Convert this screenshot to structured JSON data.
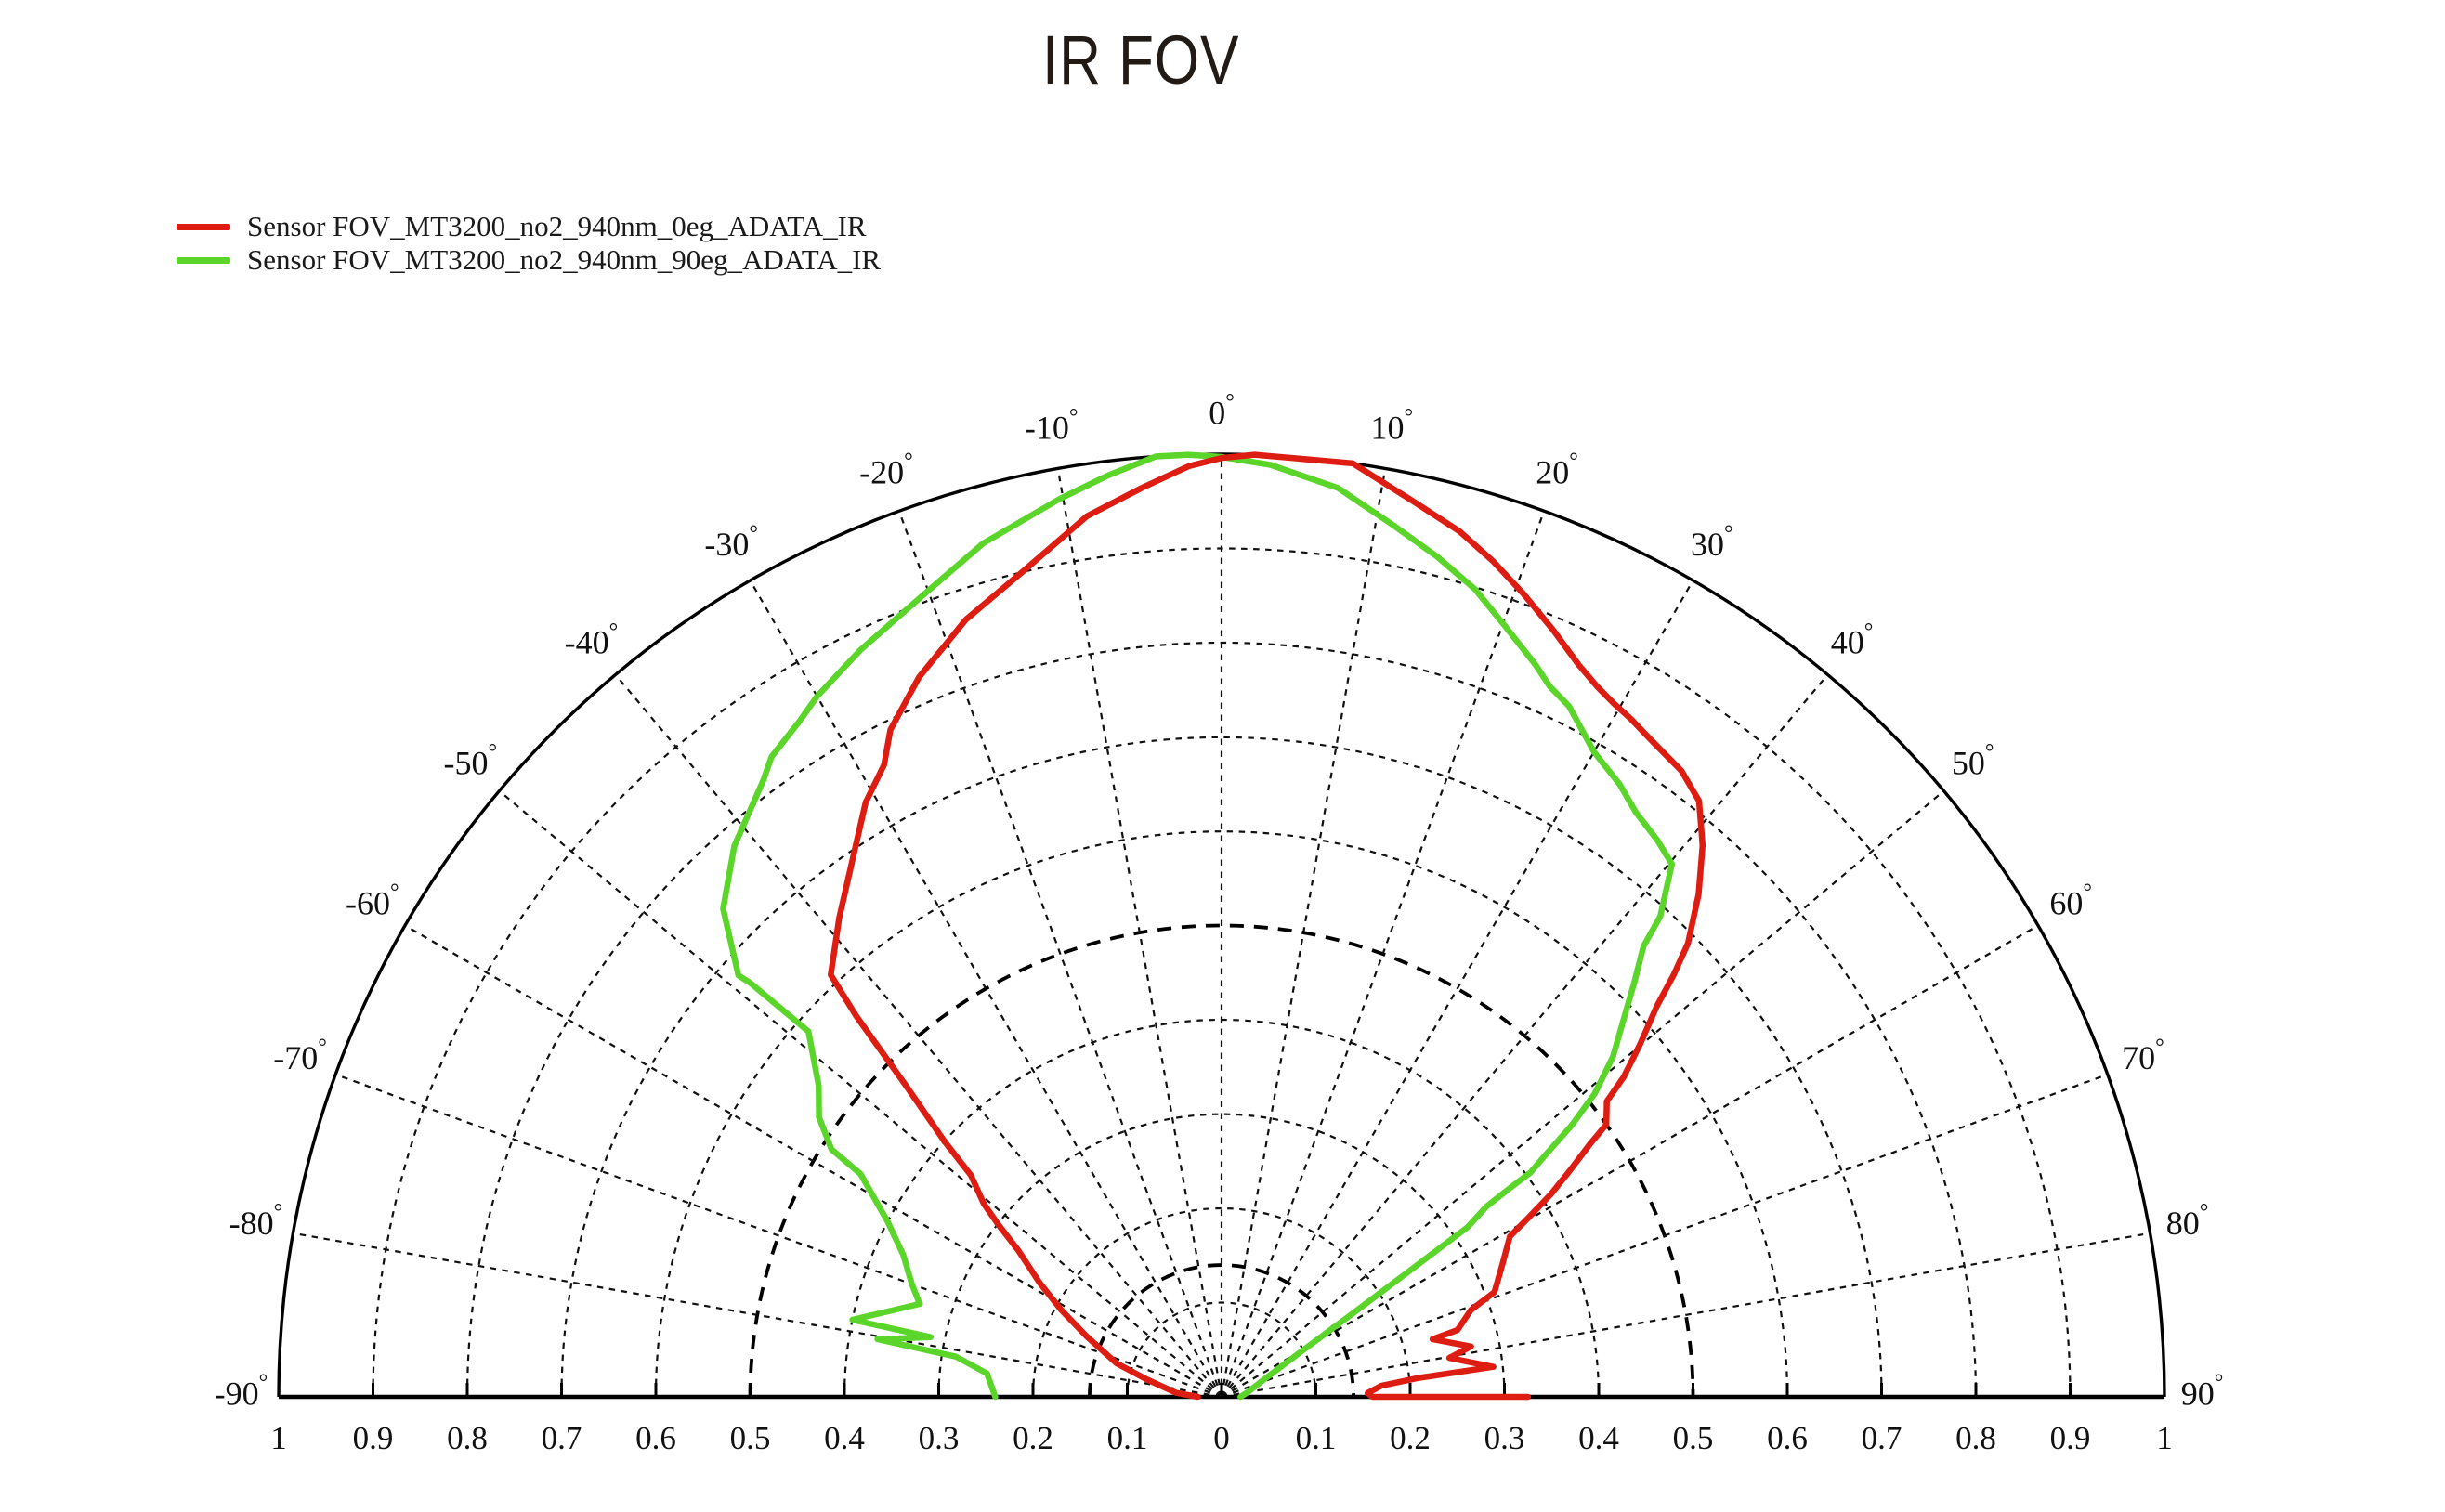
{
  "title": "IR FOV",
  "legend": [
    {
      "label": "Sensor FOV_MT3200_no2_940nm_0eg_ADATA_IR",
      "color": "#dd1c12"
    },
    {
      "label": "Sensor FOV_MT3200_no2_940nm_90eg_ADATA_IR",
      "color": "#5bd52a"
    }
  ],
  "chart_data": {
    "type": "line",
    "subtype": "half-polar",
    "title": "IR FOV",
    "angle_unit": "degrees",
    "angle_range": [
      -90,
      90
    ],
    "radial_range": [
      0,
      1
    ],
    "grid": {
      "on": true,
      "spoke_step_deg": 10,
      "circle_step": 0.1,
      "bold_dashed_circles": [
        0.14,
        0.5
      ],
      "outer_circle": 1.0
    },
    "legend_position": "top-left",
    "angle_ticks": [
      {
        "deg": -90,
        "label": "-90°"
      },
      {
        "deg": -80,
        "label": "-80°"
      },
      {
        "deg": -70,
        "label": "-70°"
      },
      {
        "deg": -60,
        "label": "-60°"
      },
      {
        "deg": -50,
        "label": "-50°"
      },
      {
        "deg": -40,
        "label": "-40°"
      },
      {
        "deg": -30,
        "label": "-30°"
      },
      {
        "deg": -20,
        "label": "-20°"
      },
      {
        "deg": -10,
        "label": "-10°"
      },
      {
        "deg": 0,
        "label": "0°"
      },
      {
        "deg": 10,
        "label": "10°"
      },
      {
        "deg": 20,
        "label": "20°"
      },
      {
        "deg": 30,
        "label": "30°"
      },
      {
        "deg": 40,
        "label": "40°"
      },
      {
        "deg": 50,
        "label": "50°"
      },
      {
        "deg": 60,
        "label": "60°"
      },
      {
        "deg": 70,
        "label": "70°"
      },
      {
        "deg": 80,
        "label": "80°"
      },
      {
        "deg": 90,
        "label": "90°"
      }
    ],
    "radial_ticks": [
      {
        "r": 0,
        "label": "0"
      },
      {
        "r": 0.1,
        "label": "0.1"
      },
      {
        "r": 0.2,
        "label": "0.2"
      },
      {
        "r": 0.3,
        "label": "0.3"
      },
      {
        "r": 0.4,
        "label": "0.4"
      },
      {
        "r": 0.5,
        "label": "0.5"
      },
      {
        "r": 0.6,
        "label": "0.6"
      },
      {
        "r": 0.7,
        "label": "0.7"
      },
      {
        "r": 0.8,
        "label": "0.8"
      },
      {
        "r": 0.9,
        "label": "0.9"
      },
      {
        "r": 1,
        "label": "1"
      }
    ],
    "series": [
      {
        "name": "Sensor FOV_MT3200_no2_940nm_90eg_ADATA_IR",
        "color": "#5bd52a",
        "points_deg_r": [
          [
            -90,
            0.24
          ],
          [
            -84.3,
            0.25
          ],
          [
            -81.4,
            0.285
          ],
          [
            -80.5,
            0.37
          ],
          [
            -78.4,
            0.315
          ],
          [
            -78.2,
            0.4
          ],
          [
            -72.9,
            0.335
          ],
          [
            -69.9,
            0.35
          ],
          [
            -65.9,
            0.37
          ],
          [
            -62.3,
            0.4
          ],
          [
            -59.4,
            0.435
          ],
          [
            -58.3,
            0.45
          ],
          [
            -57.6,
            0.49
          ],
          [
            -55.2,
            0.52
          ],
          [
            -52.3,
            0.54
          ],
          [
            -48.5,
            0.585
          ],
          [
            -48.7,
            0.665
          ],
          [
            -48.9,
            0.68
          ],
          [
            -45.6,
            0.74
          ],
          [
            -41.5,
            0.78
          ],
          [
            -36.6,
            0.815
          ],
          [
            -35.1,
            0.83
          ],
          [
            -32,
            0.845
          ],
          [
            -30,
            0.858
          ],
          [
            -25.8,
            0.88
          ],
          [
            -20,
            0.91
          ],
          [
            -15.6,
            0.94
          ],
          [
            -10.2,
            0.968
          ],
          [
            -7,
            0.985
          ],
          [
            -4,
            1.0
          ],
          [
            -2,
            1.0
          ],
          [
            0,
            0.997
          ],
          [
            3,
            0.99
          ],
          [
            7.3,
            0.972
          ],
          [
            11.2,
            0.942
          ],
          [
            14.4,
            0.92
          ],
          [
            17.4,
            0.898
          ],
          [
            20.2,
            0.871
          ],
          [
            23.2,
            0.845
          ],
          [
            24.8,
            0.83
          ],
          [
            26.7,
            0.82
          ],
          [
            30,
            0.79
          ],
          [
            33,
            0.775
          ],
          [
            35.3,
            0.76
          ],
          [
            38,
            0.75
          ],
          [
            40.2,
            0.74
          ],
          [
            42.4,
            0.69
          ],
          [
            43.1,
            0.655
          ],
          [
            44.9,
            0.62
          ],
          [
            46.8,
            0.585
          ],
          [
            49,
            0.55
          ],
          [
            50.9,
            0.51
          ],
          [
            52.2,
            0.47
          ],
          [
            53.2,
            0.43
          ],
          [
            54,
            0.405
          ],
          [
            54.1,
            0.376
          ],
          [
            54.3,
            0.346
          ],
          [
            55.4,
            0.317
          ],
          [
            57.5,
            0.167
          ],
          [
            60.7,
            0.093
          ],
          [
            68,
            0.048
          ],
          [
            80,
            0.028
          ],
          [
            90,
            0.02
          ]
        ]
      },
      {
        "name": "Sensor FOV_MT3200_no2_940nm_0eg_ADATA_IR",
        "color": "#dd1c12",
        "points_deg_r": [
          [
            -90,
            0.025
          ],
          [
            -85,
            0.048
          ],
          [
            -76.8,
            0.082
          ],
          [
            -72.3,
            0.117
          ],
          [
            -65.8,
            0.157
          ],
          [
            -61.5,
            0.194
          ],
          [
            -57.9,
            0.228
          ],
          [
            -54.2,
            0.266
          ],
          [
            -52.3,
            0.3
          ],
          [
            -50.9,
            0.325
          ],
          [
            -48.5,
            0.355
          ],
          [
            -47.3,
            0.4
          ],
          [
            -45.4,
            0.47
          ],
          [
            -43.8,
            0.56
          ],
          [
            -42.8,
            0.61
          ],
          [
            -38.6,
            0.65
          ],
          [
            -34.6,
            0.69
          ],
          [
            -30.9,
            0.735
          ],
          [
            -28.1,
            0.76
          ],
          [
            -26.4,
            0.79
          ],
          [
            -22.8,
            0.828
          ],
          [
            -18.2,
            0.868
          ],
          [
            -13.6,
            0.9
          ],
          [
            -8.7,
            0.945
          ],
          [
            -5,
            0.968
          ],
          [
            -2,
            0.988
          ],
          [
            0,
            0.996
          ],
          [
            2,
            1.0
          ],
          [
            8,
            1.0
          ],
          [
            12,
            0.972
          ],
          [
            15.4,
            0.952
          ],
          [
            18,
            0.932
          ],
          [
            20.6,
            0.91
          ],
          [
            23.4,
            0.886
          ],
          [
            26,
            0.864
          ],
          [
            27.9,
            0.852
          ],
          [
            29.5,
            0.845
          ],
          [
            31.1,
            0.84
          ],
          [
            33,
            0.833
          ],
          [
            36.3,
            0.824
          ],
          [
            38.7,
            0.81
          ],
          [
            41.1,
            0.776
          ],
          [
            43.5,
            0.735
          ],
          [
            45.8,
            0.69
          ],
          [
            47,
            0.655
          ],
          [
            48.1,
            0.62
          ],
          [
            49.9,
            0.58
          ],
          [
            51.5,
            0.545
          ],
          [
            52.5,
            0.515
          ],
          [
            54.7,
            0.5
          ],
          [
            55.5,
            0.475
          ],
          [
            57,
            0.44
          ],
          [
            58.4,
            0.41
          ],
          [
            59.8,
            0.375
          ],
          [
            60.9,
            0.35
          ],
          [
            64.6,
            0.33
          ],
          [
            69,
            0.31
          ],
          [
            70.8,
            0.28
          ],
          [
            74.2,
            0.26
          ],
          [
            74.7,
            0.232
          ],
          [
            78.6,
            0.27
          ],
          [
            80.3,
            0.245
          ],
          [
            83.7,
            0.29
          ],
          [
            84.5,
            0.21
          ],
          [
            86,
            0.17
          ],
          [
            88.5,
            0.155
          ],
          [
            90,
            0.16
          ],
          [
            90,
            0.325
          ]
        ]
      }
    ]
  }
}
